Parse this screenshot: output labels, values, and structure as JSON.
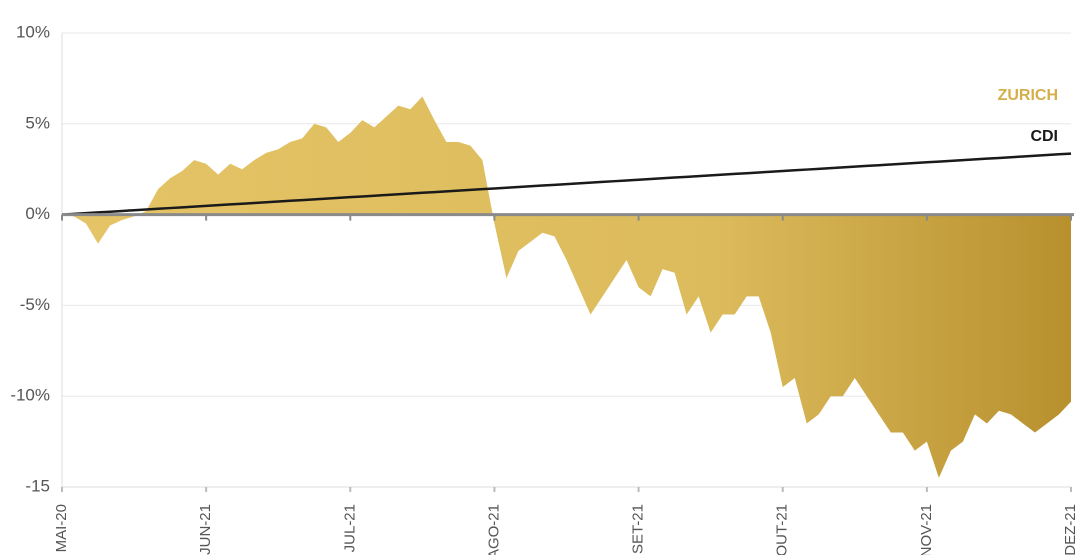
{
  "chart_data": {
    "type": "area",
    "categories": [
      "MAI-20",
      null,
      null,
      null,
      null,
      null,
      null,
      null,
      null,
      null,
      null,
      null,
      "JUN-21",
      null,
      null,
      null,
      null,
      null,
      null,
      null,
      null,
      null,
      null,
      null,
      "JUL-21",
      null,
      null,
      null,
      null,
      null,
      null,
      null,
      null,
      null,
      null,
      null,
      "AGO-21",
      null,
      null,
      null,
      null,
      null,
      null,
      null,
      null,
      null,
      null,
      null,
      "SET-21",
      null,
      null,
      null,
      null,
      null,
      null,
      null,
      null,
      null,
      null,
      null,
      "OUT-21",
      null,
      null,
      null,
      null,
      null,
      null,
      null,
      null,
      null,
      null,
      null,
      "NOV-21",
      null,
      null,
      null,
      null,
      null,
      null,
      null,
      null,
      null,
      null,
      null,
      "DEZ-21"
    ],
    "series": [
      {
        "name": "ZURICH",
        "color": "#d4af4a",
        "values": [
          0,
          -0.1,
          -0.5,
          -1.6,
          -0.6,
          -0.3,
          -0.1,
          0.2,
          1.4,
          2.0,
          2.4,
          3.0,
          2.8,
          2.2,
          2.8,
          2.5,
          3.0,
          3.4,
          3.6,
          4.0,
          4.2,
          5.0,
          4.8,
          4.0,
          4.5,
          5.2,
          4.8,
          5.4,
          6.0,
          5.8,
          6.5,
          5.2,
          4.0,
          4.0,
          3.8,
          3.0,
          -0.5,
          -3.5,
          -2.0,
          -1.5,
          -1.0,
          -1.2,
          -2.5,
          -4.0,
          -5.5,
          -4.5,
          -3.5,
          -2.5,
          -4.0,
          -4.5,
          -3.0,
          -3.2,
          -5.5,
          -4.5,
          -6.5,
          -5.5,
          -5.5,
          -4.5,
          -4.5,
          -6.5,
          -9.5,
          -9.0,
          -11.5,
          -11.0,
          -10.0,
          -10.0,
          -9.0,
          -10.0,
          -11.0,
          -12.0,
          -12.0,
          -13.0,
          -12.5,
          -14.5,
          -13.0,
          -12.5,
          -11.0,
          -11.5,
          -10.8,
          -11.0,
          -11.5,
          -12.0,
          -11.5,
          -11.0,
          -10.3
        ]
      },
      {
        "name": "CDI",
        "color": "#1a1a1a",
        "values": [
          0,
          0.04,
          0.08,
          0.12,
          0.16,
          0.2,
          0.24,
          0.28,
          0.32,
          0.36,
          0.4,
          0.44,
          0.48,
          0.52,
          0.56,
          0.6,
          0.64,
          0.68,
          0.72,
          0.76,
          0.8,
          0.84,
          0.88,
          0.92,
          0.96,
          1.0,
          1.04,
          1.08,
          1.12,
          1.16,
          1.2,
          1.24,
          1.28,
          1.32,
          1.36,
          1.4,
          1.44,
          1.48,
          1.52,
          1.56,
          1.6,
          1.64,
          1.68,
          1.72,
          1.76,
          1.8,
          1.84,
          1.88,
          1.92,
          1.96,
          2.0,
          2.04,
          2.08,
          2.12,
          2.16,
          2.2,
          2.24,
          2.28,
          2.32,
          2.36,
          2.4,
          2.44,
          2.48,
          2.52,
          2.56,
          2.6,
          2.64,
          2.68,
          2.72,
          2.76,
          2.8,
          2.84,
          2.88,
          2.92,
          2.96,
          3.0,
          3.04,
          3.08,
          3.12,
          3.16,
          3.2,
          3.24,
          3.28,
          3.32,
          3.36
        ]
      }
    ],
    "ylim": [
      -15,
      10
    ],
    "yticks": [
      {
        "value": 10,
        "label": "10%"
      },
      {
        "value": 5,
        "label": "5%"
      },
      {
        "value": 0,
        "label": "0%"
      },
      {
        "value": -5,
        "label": "-5%"
      },
      {
        "value": -10,
        "label": "-10%"
      },
      -15
    ],
    "grid": true
  }
}
